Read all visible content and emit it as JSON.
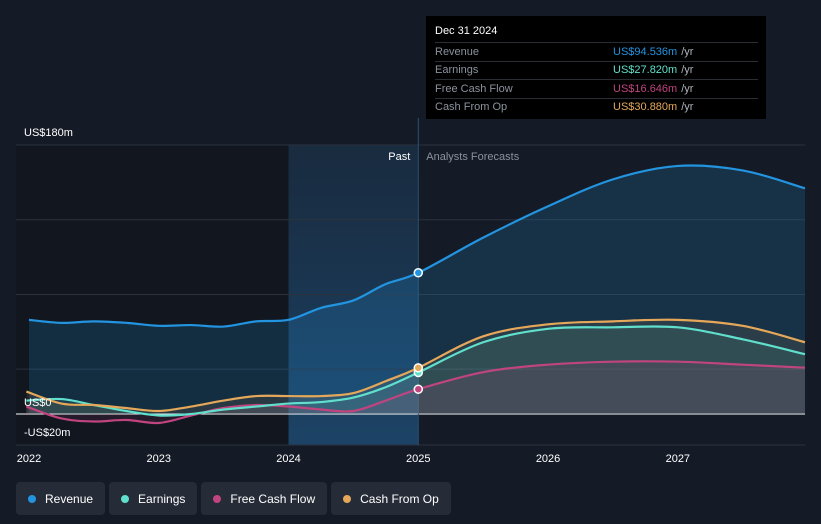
{
  "chart_data": {
    "type": "area",
    "title": "",
    "y_unit_labels": {
      "top": "US$180m",
      "zero": "US$0",
      "bottom": "-US$20m"
    },
    "ylim": [
      -20,
      180
    ],
    "xlim": [
      2021.9,
      2027.98
    ],
    "x_ticks": [
      "2022",
      "2023",
      "2024",
      "2025",
      "2026",
      "2027"
    ],
    "past_label": "Past",
    "forecast_label": "Analysts Forecasts",
    "forecast_start": 2025.0,
    "highlight_range": [
      2024.0,
      2025.0
    ],
    "series": [
      {
        "name": "Revenue",
        "color": "#2394df",
        "points": [
          [
            2022.0,
            63
          ],
          [
            2022.25,
            61
          ],
          [
            2022.5,
            62
          ],
          [
            2022.75,
            61
          ],
          [
            2023.0,
            59
          ],
          [
            2023.25,
            59.5
          ],
          [
            2023.5,
            58.5
          ],
          [
            2023.75,
            62
          ],
          [
            2024.0,
            63
          ],
          [
            2024.25,
            71
          ],
          [
            2024.5,
            76
          ],
          [
            2024.75,
            87
          ],
          [
            2025.0,
            94.5
          ]
        ],
        "forecast": [
          [
            2025.0,
            94.5
          ],
          [
            2025.5,
            118
          ],
          [
            2026.0,
            139
          ],
          [
            2026.5,
            157
          ],
          [
            2027.0,
            166
          ],
          [
            2027.5,
            163
          ],
          [
            2027.98,
            151
          ]
        ]
      },
      {
        "name": "Earnings",
        "color": "#60e0cc",
        "points": [
          [
            2021.98,
            9
          ],
          [
            2022.25,
            10
          ],
          [
            2022.5,
            6
          ],
          [
            2022.75,
            2
          ],
          [
            2023.0,
            -1
          ],
          [
            2023.25,
            0
          ],
          [
            2023.5,
            3
          ],
          [
            2023.75,
            5
          ],
          [
            2024.0,
            7
          ],
          [
            2024.25,
            8
          ],
          [
            2024.5,
            11
          ],
          [
            2024.75,
            18
          ],
          [
            2025.0,
            27.8
          ]
        ],
        "forecast": [
          [
            2025.0,
            27.8
          ],
          [
            2025.5,
            48
          ],
          [
            2026.0,
            57
          ],
          [
            2026.5,
            58
          ],
          [
            2027.0,
            58
          ],
          [
            2027.5,
            50
          ],
          [
            2027.98,
            40
          ]
        ]
      },
      {
        "name": "Free Cash Flow",
        "color": "#c0447f",
        "points": [
          [
            2021.98,
            5
          ],
          [
            2022.25,
            -3
          ],
          [
            2022.5,
            -5
          ],
          [
            2022.75,
            -4
          ],
          [
            2023.0,
            -6
          ],
          [
            2023.25,
            -1
          ],
          [
            2023.5,
            4
          ],
          [
            2023.75,
            6
          ],
          [
            2024.0,
            5
          ],
          [
            2024.25,
            3
          ],
          [
            2024.5,
            2
          ],
          [
            2024.75,
            9
          ],
          [
            2025.0,
            16.6
          ]
        ],
        "forecast": [
          [
            2025.0,
            16.6
          ],
          [
            2025.5,
            28
          ],
          [
            2026.0,
            33
          ],
          [
            2026.5,
            35
          ],
          [
            2027.0,
            35
          ],
          [
            2027.5,
            33
          ],
          [
            2027.98,
            31
          ]
        ]
      },
      {
        "name": "Cash From Op",
        "color": "#e5a85a",
        "points": [
          [
            2021.98,
            15
          ],
          [
            2022.25,
            7
          ],
          [
            2022.5,
            6
          ],
          [
            2022.75,
            4
          ],
          [
            2023.0,
            2
          ],
          [
            2023.25,
            5
          ],
          [
            2023.5,
            9
          ],
          [
            2023.75,
            12
          ],
          [
            2024.0,
            12
          ],
          [
            2024.25,
            12
          ],
          [
            2024.5,
            14
          ],
          [
            2024.75,
            22
          ],
          [
            2025.0,
            30.9
          ]
        ],
        "forecast": [
          [
            2025.0,
            30.9
          ],
          [
            2025.5,
            52
          ],
          [
            2026.0,
            60
          ],
          [
            2026.5,
            62
          ],
          [
            2027.0,
            63
          ],
          [
            2027.5,
            59
          ],
          [
            2027.98,
            48
          ]
        ]
      }
    ]
  },
  "tooltip": {
    "date": "Dec 31 2024",
    "rows": [
      {
        "label": "Revenue",
        "value": "US$94.536m",
        "unit": "/yr",
        "color": "#2394df"
      },
      {
        "label": "Earnings",
        "value": "US$27.820m",
        "unit": "/yr",
        "color": "#60e0cc"
      },
      {
        "label": "Free Cash Flow",
        "value": "US$16.646m",
        "unit": "/yr",
        "color": "#c0447f"
      },
      {
        "label": "Cash From Op",
        "value": "US$30.880m",
        "unit": "/yr",
        "color": "#e5a85a"
      }
    ]
  },
  "legend": [
    {
      "label": "Revenue",
      "color": "#2394df"
    },
    {
      "label": "Earnings",
      "color": "#60e0cc"
    },
    {
      "label": "Free Cash Flow",
      "color": "#c0447f"
    },
    {
      "label": "Cash From Op",
      "color": "#e5a85a"
    }
  ]
}
